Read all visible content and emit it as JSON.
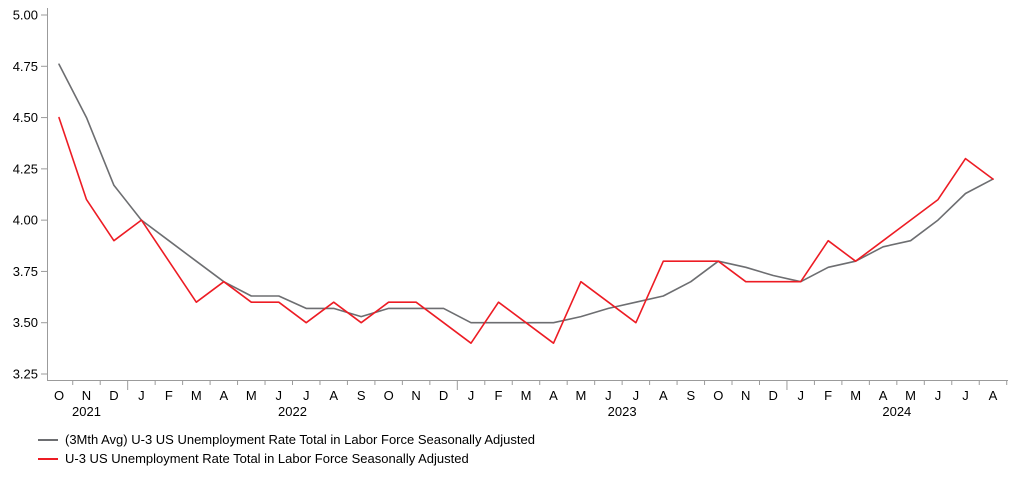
{
  "chart_data": {
    "type": "line",
    "title": "",
    "xlabel": "",
    "ylabel": "",
    "grid": false,
    "legend_position": "bottom-left",
    "ylim": [
      3.25,
      5.0
    ],
    "ytick_labels": [
      "5.00",
      "4.75",
      "4.50",
      "4.25",
      "4.00",
      "3.75",
      "3.50",
      "3.25"
    ],
    "x_labels": [
      "O",
      "N",
      "D",
      "J",
      "F",
      "M",
      "A",
      "M",
      "J",
      "J",
      "A",
      "S",
      "O",
      "N",
      "D",
      "J",
      "F",
      "M",
      "A",
      "M",
      "J",
      "J",
      "A",
      "S",
      "O",
      "N",
      "D",
      "J",
      "F",
      "M",
      "A",
      "M",
      "J",
      "J",
      "A"
    ],
    "year_labels": [
      {
        "year": "2021",
        "start_index": 0,
        "end_index": 2
      },
      {
        "year": "2022",
        "start_index": 3,
        "end_index": 14
      },
      {
        "year": "2023",
        "start_index": 15,
        "end_index": 26
      },
      {
        "year": "2024",
        "start_index": 27,
        "end_index": 34
      }
    ],
    "series": [
      {
        "name": "(3Mth Avg) U-3 US Unemployment Rate Total in Labor Force Seasonally Adjusted",
        "color": "#6d6e71",
        "values": [
          4.76,
          4.5,
          4.17,
          4.0,
          3.9,
          3.8,
          3.7,
          3.63,
          3.63,
          3.57,
          3.57,
          3.53,
          3.57,
          3.57,
          3.57,
          3.5,
          3.5,
          3.5,
          3.5,
          3.53,
          3.57,
          3.6,
          3.63,
          3.7,
          3.8,
          3.77,
          3.73,
          3.7,
          3.77,
          3.8,
          3.87,
          3.9,
          4.0,
          4.13,
          4.2
        ]
      },
      {
        "name": "U-3 US Unemployment Rate Total in Labor Force Seasonally Adjusted",
        "color": "#ed1c24",
        "values": [
          4.5,
          4.1,
          3.9,
          4.0,
          3.8,
          3.6,
          3.7,
          3.6,
          3.6,
          3.5,
          3.6,
          3.5,
          3.6,
          3.6,
          3.5,
          3.4,
          3.6,
          3.5,
          3.4,
          3.7,
          3.6,
          3.5,
          3.8,
          3.8,
          3.8,
          3.7,
          3.7,
          3.7,
          3.9,
          3.8,
          3.9,
          4.0,
          4.1,
          4.3,
          4.2
        ]
      }
    ],
    "axis_color": "#9b9b9b"
  }
}
